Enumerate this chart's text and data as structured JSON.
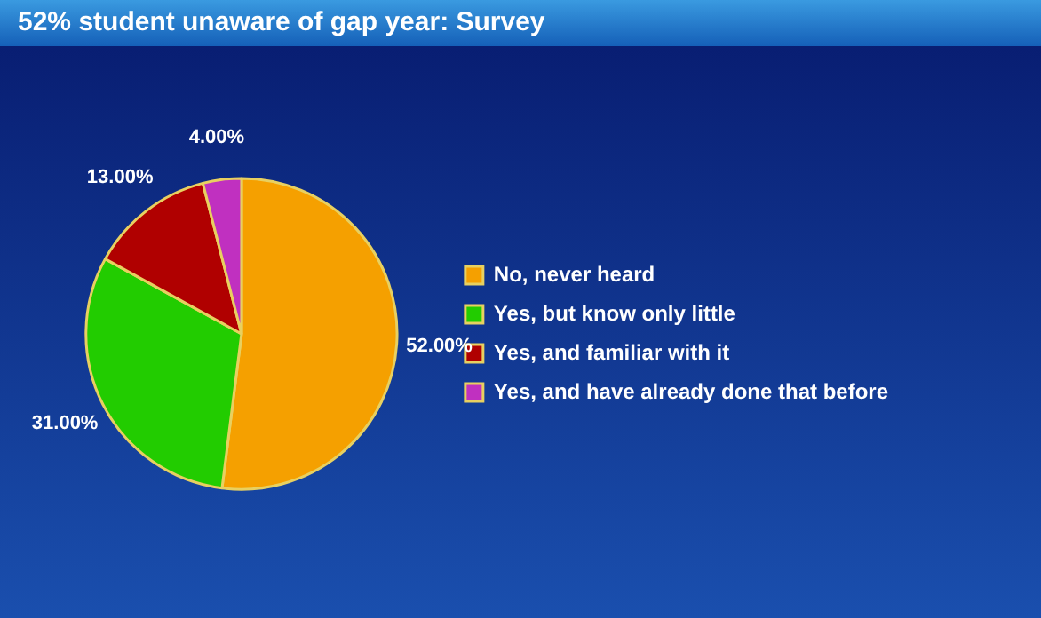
{
  "chart_data": {
    "type": "pie",
    "title": "52% student unaware of gap year: Survey",
    "categories": [
      "No, never heard",
      "Yes, but know only little",
      "Yes, and familiar with it",
      "Yes, and have already done that before"
    ],
    "values": [
      52,
      31,
      13,
      4
    ],
    "colors": [
      "#f5a000",
      "#22cc00",
      "#b00000",
      "#c030c0"
    ],
    "value_labels": [
      "52.00%",
      "31.00%",
      "13.00%",
      "4.00%"
    ],
    "legend": "right"
  }
}
